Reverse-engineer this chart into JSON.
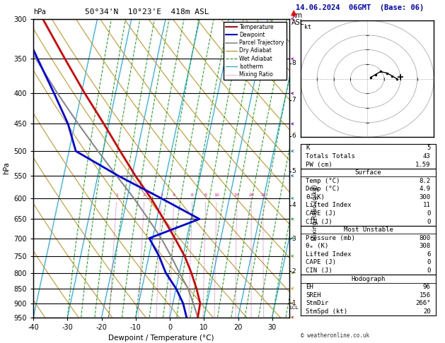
{
  "title_left": "50°34'N  10°23'E  418m ASL",
  "title_right": "14.06.2024  06GMT  (Base: 06)",
  "xlabel": "Dewpoint / Temperature (°C)",
  "ylabel_left": "hPa",
  "copyright": "© weatheronline.co.uk",
  "pressure_levels": [
    300,
    350,
    400,
    450,
    500,
    550,
    600,
    650,
    700,
    750,
    800,
    850,
    900,
    950
  ],
  "temp_profile": {
    "pressure": [
      950,
      900,
      850,
      800,
      750,
      700,
      650,
      600,
      550,
      500,
      450,
      400,
      350,
      300
    ],
    "temp": [
      8.2,
      8.0,
      6.0,
      3.5,
      0.5,
      -3.5,
      -8.0,
      -13.0,
      -19.0,
      -25.0,
      -31.5,
      -39.0,
      -47.0,
      -56.0
    ]
  },
  "dewp_profile": {
    "pressure": [
      950,
      900,
      850,
      800,
      750,
      700,
      650,
      600,
      550,
      500,
      450,
      400,
      350,
      300
    ],
    "dewp": [
      4.9,
      3.0,
      0.0,
      -4.0,
      -7.0,
      -11.0,
      2.5,
      -10.0,
      -24.0,
      -38.0,
      -42.0,
      -48.0,
      -55.0,
      -63.0
    ]
  },
  "parcel_profile": {
    "pressure": [
      950,
      900,
      850,
      800,
      750,
      700,
      650,
      600,
      550,
      500,
      450,
      400,
      350,
      300
    ],
    "temp": [
      8.2,
      6.0,
      3.5,
      0.0,
      -3.5,
      -7.5,
      -12.5,
      -18.0,
      -24.5,
      -31.5,
      -39.0,
      -47.0,
      -55.5,
      -65.0
    ]
  },
  "skew_factor": 25.0,
  "temp_range": [
    -40,
    35
  ],
  "pres_range_log": [
    950,
    300
  ],
  "isotherms": [
    -40,
    -30,
    -20,
    -10,
    0,
    10,
    20,
    30
  ],
  "isotherm_color": "#00aaff",
  "dry_adiabat_color": "#cc8800",
  "wet_adiabat_color": "#00aa00",
  "mixing_ratio_color": "#ff00aa",
  "mixing_ratio_values": [
    1,
    2,
    3,
    4,
    6,
    8,
    10,
    15,
    20,
    25
  ],
  "temp_color": "#dd0000",
  "dewp_color": "#0000ee",
  "parcel_color": "#888888",
  "background_color": "#ffffff",
  "k_index": 5,
  "totals_totals": 43,
  "pw_cm": 1.59,
  "surface_temp": 8.2,
  "surface_dewp": 4.9,
  "surface_theta_e": 300,
  "lifted_index": 11,
  "cape": 0,
  "cin": 0,
  "mu_pressure": 800,
  "mu_theta_e": 308,
  "mu_lifted_index": 6,
  "mu_cape": 0,
  "mu_cin": 0,
  "eh": 96,
  "sreh": 156,
  "stm_dir": 266,
  "stm_spd": 20,
  "hodo_winds_u": [
    2,
    5,
    8,
    12,
    15,
    18
  ],
  "hodo_winds_v": [
    1,
    3,
    5,
    4,
    2,
    0
  ],
  "lcl_pressure": 915,
  "km_ticks": [
    1,
    2,
    3,
    4,
    5,
    6,
    7,
    8
  ],
  "wind_barb_colors": {
    "300": "#cc00cc",
    "350": "#cc00cc",
    "400": "#8800cc",
    "450": "#8800cc",
    "500": "#0088cc",
    "550": "#0088cc",
    "600": "#00aaaa",
    "650": "#00aa44",
    "700": "#00aa44",
    "750": "#44aa00",
    "800": "#88aa00",
    "850": "#ccaa00",
    "900": "#cc6600",
    "950": "#cc4400"
  }
}
